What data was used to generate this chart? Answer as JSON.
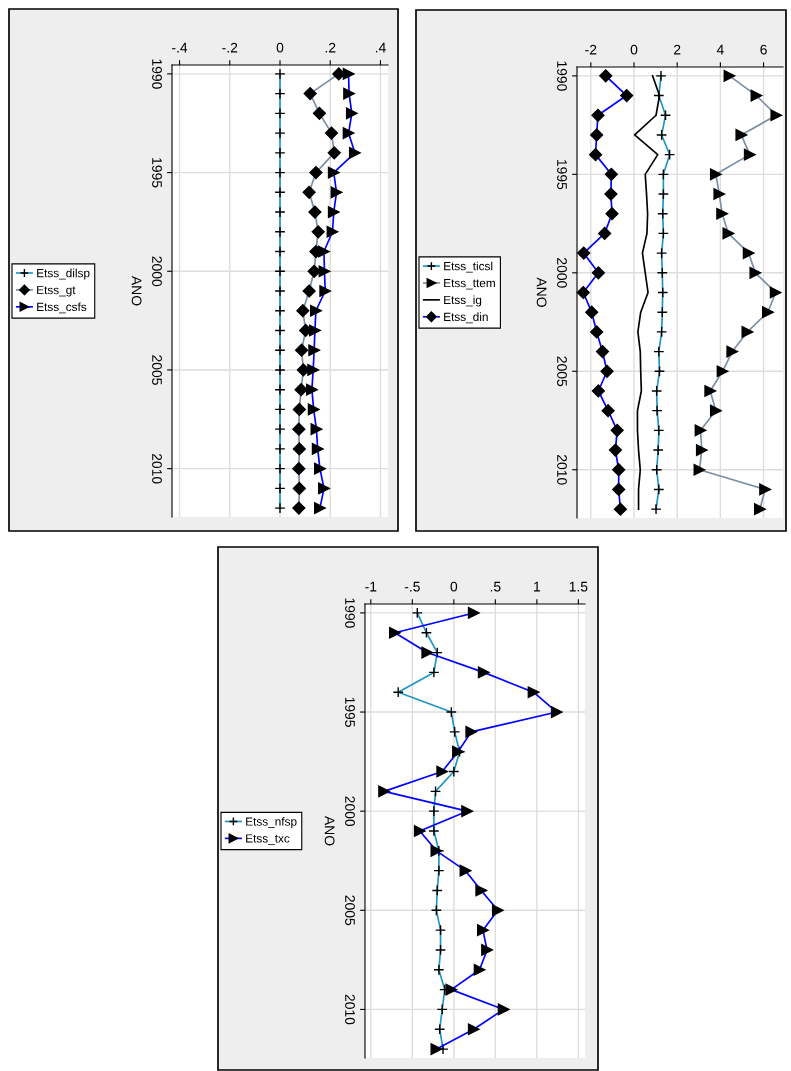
{
  "chart_data": [
    {
      "type": "line",
      "orientation": "horizontal",
      "ylabel": "ANO",
      "categories": [
        "1990",
        null,
        null,
        null,
        null,
        "1995",
        null,
        null,
        null,
        null,
        "2000",
        null,
        null,
        null,
        null,
        "2005",
        null,
        null,
        null,
        null,
        "2010",
        null,
        null
      ],
      "xlim": [
        -0.43,
        0.43
      ],
      "xticks": [
        {
          "value": -0.4,
          "label": "-.4"
        },
        {
          "value": -0.2,
          "label": "-.2"
        },
        0,
        {
          "value": 0.2,
          "label": ".2"
        },
        {
          "value": 0.4,
          "label": ".4"
        }
      ],
      "grid": true,
      "legend": "left",
      "series": [
        {
          "name": "Etss_dilsp",
          "color": "#1f95c4",
          "marker": "cross",
          "values": [
            0,
            0,
            0,
            0,
            0,
            0,
            0,
            0,
            0,
            0,
            0,
            0,
            0,
            0,
            0,
            0,
            0,
            0,
            0,
            0,
            0,
            0,
            0
          ]
        },
        {
          "name": "Etss_gt",
          "color": "#7a8ea6",
          "marker": "diamond",
          "values": [
            0.234,
            0.12,
            0.157,
            0.205,
            0.216,
            0.143,
            0.116,
            0.139,
            0.152,
            0.143,
            0.136,
            0.116,
            0.091,
            0.102,
            0.086,
            0.093,
            0.084,
            0.077,
            0.075,
            0.077,
            0.075,
            0.077,
            0.075
          ]
        },
        {
          "name": "Etss_csfs",
          "color": "#0000ff",
          "marker": "triangle",
          "values": [
            0.273,
            0.275,
            0.286,
            0.273,
            0.298,
            0.214,
            0.225,
            0.214,
            0.209,
            0.175,
            0.177,
            0.18,
            0.143,
            0.139,
            0.136,
            0.132,
            0.127,
            0.134,
            0.145,
            0.15,
            0.159,
            0.175,
            0.159
          ]
        }
      ]
    },
    {
      "type": "line",
      "orientation": "horizontal",
      "ylabel": "ANO",
      "categories": [
        "1990",
        null,
        null,
        null,
        null,
        "1995",
        null,
        null,
        null,
        null,
        "2000",
        null,
        null,
        null,
        null,
        "2005",
        null,
        null,
        null,
        null,
        "2010",
        null,
        null
      ],
      "xlim": [
        -2.64,
        6.9
      ],
      "xticks": [
        -2,
        0,
        2,
        4,
        6
      ],
      "grid": true,
      "legend": "left",
      "series": [
        {
          "name": "Etss_ticsl",
          "color": "#1f95c4",
          "marker": "cross",
          "values": [
            1.25,
            1.15,
            1.46,
            1.28,
            1.65,
            1.36,
            1.36,
            1.33,
            1.36,
            1.28,
            1.31,
            1.33,
            1.31,
            1.28,
            1.15,
            1.18,
            1.05,
            1.07,
            1.15,
            1.12,
            1.05,
            1.15,
            1.02
          ]
        },
        {
          "name": "Etss_ttem",
          "color": "#7a8ea6",
          "marker": "triangle",
          "values": [
            4.42,
            5.67,
            6.59,
            4.97,
            5.36,
            3.79,
            3.95,
            4.08,
            4.37,
            5.31,
            5.62,
            6.56,
            6.2,
            5.25,
            4.55,
            4.1,
            3.53,
            3.79,
            3.08,
            3.14,
            3.03,
            6.07,
            5.83
          ]
        },
        {
          "name": "Etss_ig",
          "color": "#000000",
          "marker": "none",
          "values": [
            0.86,
            1.18,
            1.02,
            0.03,
            1.1,
            0.52,
            0.58,
            0.63,
            0.6,
            0.39,
            0.52,
            0.65,
            0.31,
            0.18,
            0.29,
            0.31,
            0.34,
            0.16,
            0.16,
            0.21,
            0.29,
            0.21,
            0.21
          ]
        },
        {
          "name": "Etss_din",
          "color": "#0000ff",
          "marker": "diamond",
          "values": [
            -1.31,
            -0.34,
            -1.67,
            -1.73,
            -1.78,
            -1.05,
            -1.07,
            -1.02,
            -1.36,
            -2.33,
            -1.65,
            -2.35,
            -1.96,
            -1.73,
            -1.46,
            -1.25,
            -1.65,
            -1.2,
            -0.78,
            -0.86,
            -0.71,
            -0.71,
            -0.63
          ]
        }
      ]
    },
    {
      "type": "line",
      "orientation": "horizontal",
      "ylabel": "ANO",
      "categories": [
        "1990",
        null,
        null,
        null,
        null,
        "1995",
        null,
        null,
        null,
        null,
        "2000",
        null,
        null,
        null,
        null,
        "2005",
        null,
        null,
        null,
        null,
        "2010",
        null,
        null
      ],
      "xlim": [
        -1.07,
        1.58
      ],
      "xticks": [
        -1,
        {
          "value": -0.5,
          "label": "-.5"
        },
        0,
        {
          "value": 0.5,
          "label": ".5"
        },
        1,
        1.5
      ],
      "grid": true,
      "legend": "left",
      "series": [
        {
          "name": "Etss_nfsp",
          "color": "#1f95c4",
          "marker": "cross",
          "values": [
            -0.44,
            -0.33,
            -0.2,
            -0.24,
            -0.67,
            -0.03,
            0.01,
            0.07,
            0.0,
            -0.22,
            -0.24,
            -0.24,
            -0.18,
            -0.18,
            -0.2,
            -0.21,
            -0.16,
            -0.16,
            -0.18,
            -0.11,
            -0.14,
            -0.17,
            -0.13
          ]
        },
        {
          "name": "Etss_txc",
          "color": "#0000ff",
          "marker": "triangle",
          "values": [
            0.24,
            -0.71,
            -0.32,
            0.36,
            0.96,
            1.24,
            0.21,
            0.05,
            -0.14,
            -0.84,
            0.16,
            -0.41,
            -0.21,
            0.14,
            0.33,
            0.53,
            0.35,
            0.4,
            0.31,
            -0.03,
            0.6,
            0.24,
            -0.21
          ]
        }
      ]
    }
  ]
}
